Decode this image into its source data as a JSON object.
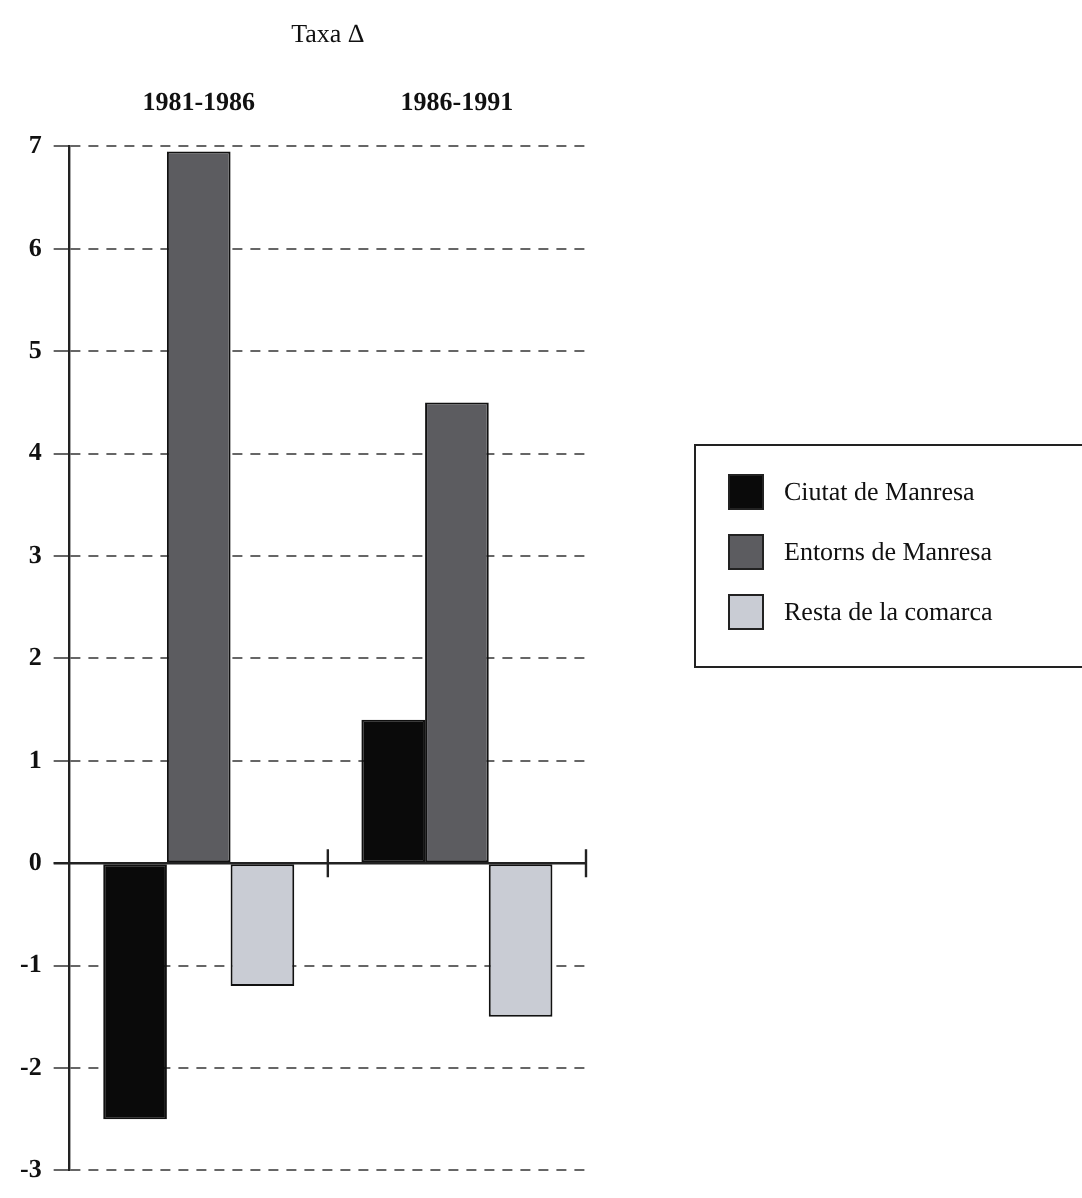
{
  "chart_data": {
    "type": "bar",
    "xlabel": "Taxa Δ",
    "categories": [
      "1981-1986",
      "1986-1991"
    ],
    "series": [
      {
        "name": "Ciutat de Manresa",
        "color": "#0a0a0a",
        "values": [
          -2.5,
          1.4
        ]
      },
      {
        "name": "Entorns de Manresa",
        "color": "#5c5c60",
        "values": [
          6.95,
          4.5
        ]
      },
      {
        "name": "Resta de la comarca",
        "color": "#c9ccd4",
        "values": [
          -1.2,
          -1.5
        ]
      }
    ],
    "ylim": [
      -3,
      7
    ],
    "yticks": [
      -3,
      -2,
      -1,
      0,
      1,
      2,
      3,
      4,
      5,
      6,
      7
    ],
    "grid": "y",
    "legend": "right"
  }
}
